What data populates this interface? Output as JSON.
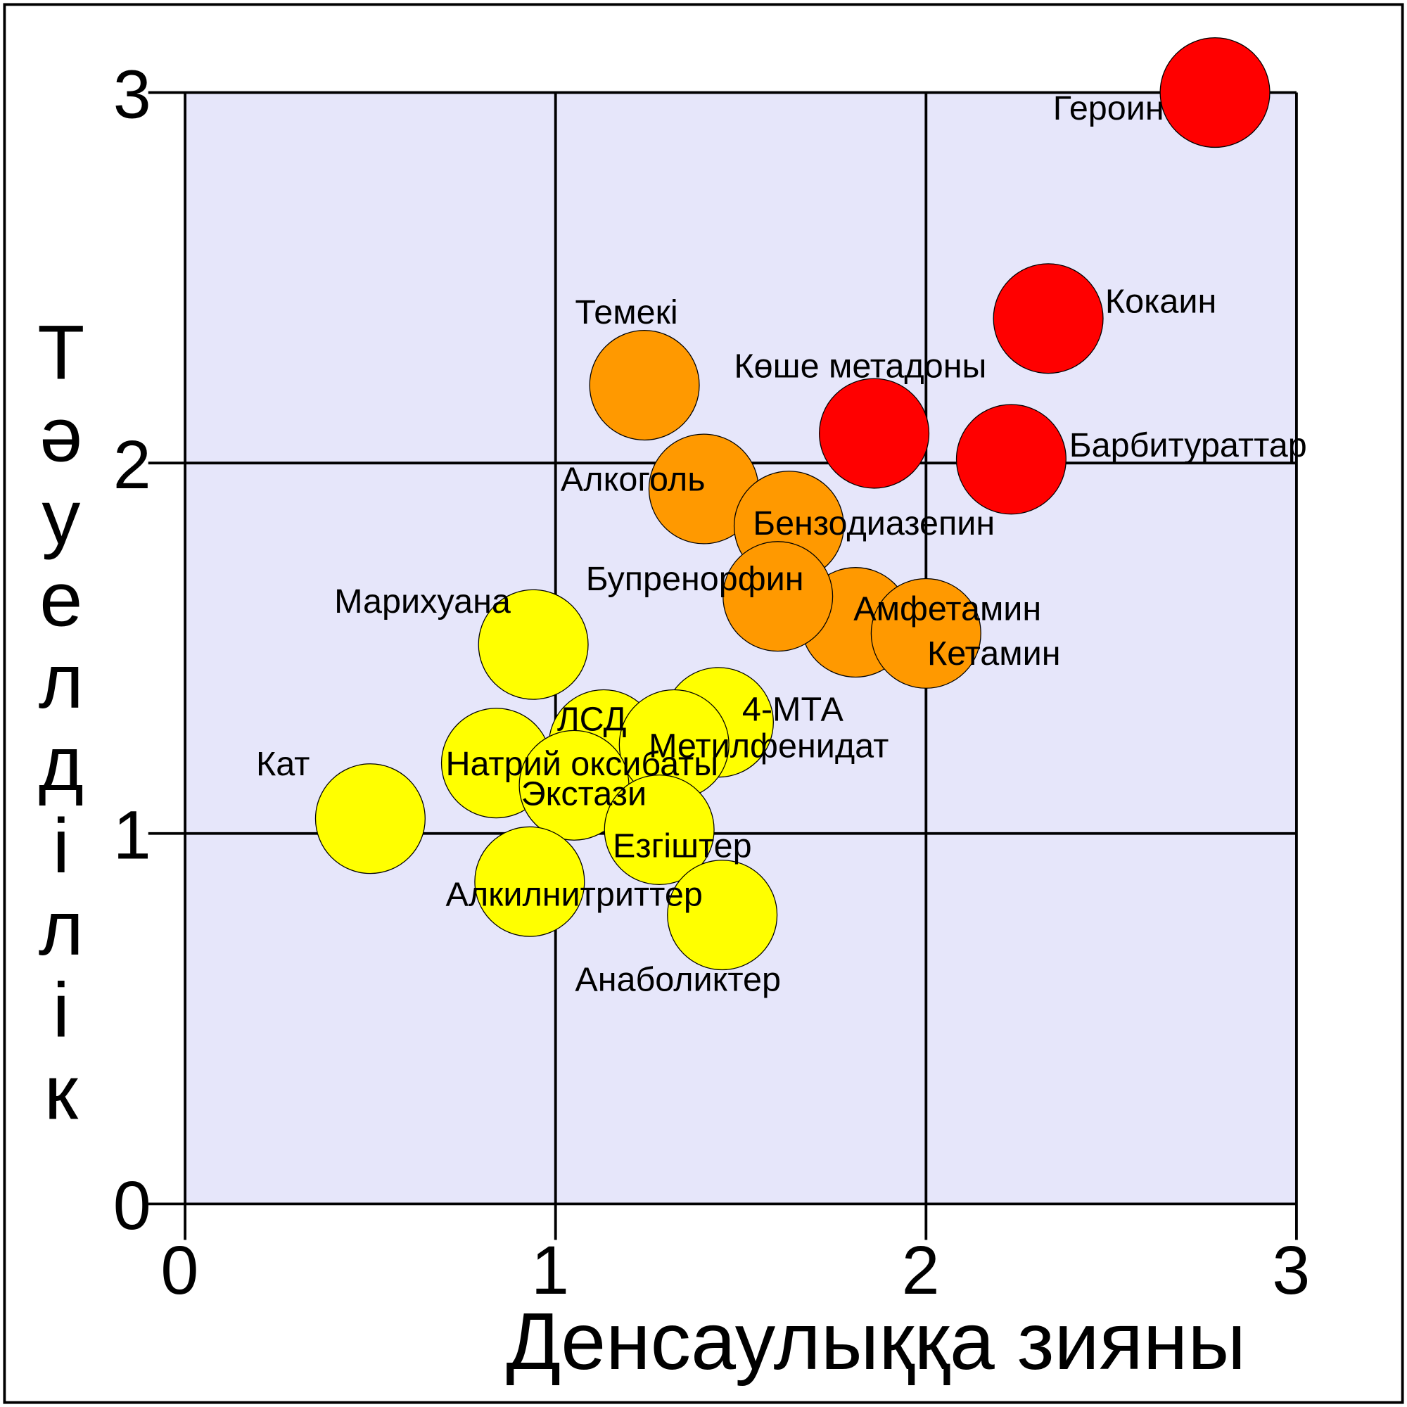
{
  "chart_data": {
    "type": "scatter",
    "xlabel": "Денсаулыққа зияны",
    "ylabel": "Тәуелділік",
    "xlim": [
      0,
      3
    ],
    "ylim": [
      0,
      3
    ],
    "xticks": [
      0,
      1,
      2,
      3
    ],
    "yticks": [
      0,
      1,
      2,
      3
    ],
    "grid": true,
    "points": [
      {
        "label": "Героин",
        "x": 2.78,
        "y": 3.0,
        "color": "#ff0000"
      },
      {
        "label": "Кокаин",
        "x": 2.33,
        "y": 2.39,
        "color": "#ff0000"
      },
      {
        "label": "Көше метадоны",
        "x": 1.86,
        "y": 2.08,
        "color": "#ff0000"
      },
      {
        "label": "Барбитураттар",
        "x": 2.23,
        "y": 2.01,
        "color": "#ff0000"
      },
      {
        "label": "Темекі",
        "x": 1.24,
        "y": 2.21,
        "color": "#ff9900"
      },
      {
        "label": "Алкоголь",
        "x": 1.4,
        "y": 1.93,
        "color": "#ff9900"
      },
      {
        "label": "Бензодиазепин",
        "x": 1.63,
        "y": 1.83,
        "color": "#ff9900"
      },
      {
        "label": "Амфетамин",
        "x": 1.81,
        "y": 1.57,
        "color": "#ff9900"
      },
      {
        "label": "Кетамин",
        "x": 2.0,
        "y": 1.54,
        "color": "#ff9900"
      },
      {
        "label": "Бупренорфин",
        "x": 1.6,
        "y": 1.64,
        "color": "#ff9900"
      },
      {
        "label": "Марихуана",
        "x": 0.94,
        "y": 1.51,
        "color": "#ffff00"
      },
      {
        "label": "4-МТА",
        "x": 1.44,
        "y": 1.3,
        "color": "#ffff00"
      },
      {
        "label": "ЛСД",
        "x": 1.13,
        "y": 1.24,
        "color": "#ffff00"
      },
      {
        "label": "Метилфенидат",
        "x": 1.32,
        "y": 1.24,
        "color": "#ffff00"
      },
      {
        "label": "Натрий оксибаты",
        "x": 0.84,
        "y": 1.19,
        "color": "#ffff00"
      },
      {
        "label": "Экстази",
        "x": 1.05,
        "y": 1.13,
        "color": "#ffff00"
      },
      {
        "label": "Кат",
        "x": 0.5,
        "y": 1.04,
        "color": "#ffff00"
      },
      {
        "label": "Езгіштер",
        "x": 1.28,
        "y": 1.01,
        "color": "#ffff00"
      },
      {
        "label": "Алкилнитриттер",
        "x": 0.93,
        "y": 0.87,
        "color": "#ffff00"
      },
      {
        "label": "Анаболиктер",
        "x": 1.45,
        "y": 0.78,
        "color": "#ffff00"
      }
    ]
  }
}
